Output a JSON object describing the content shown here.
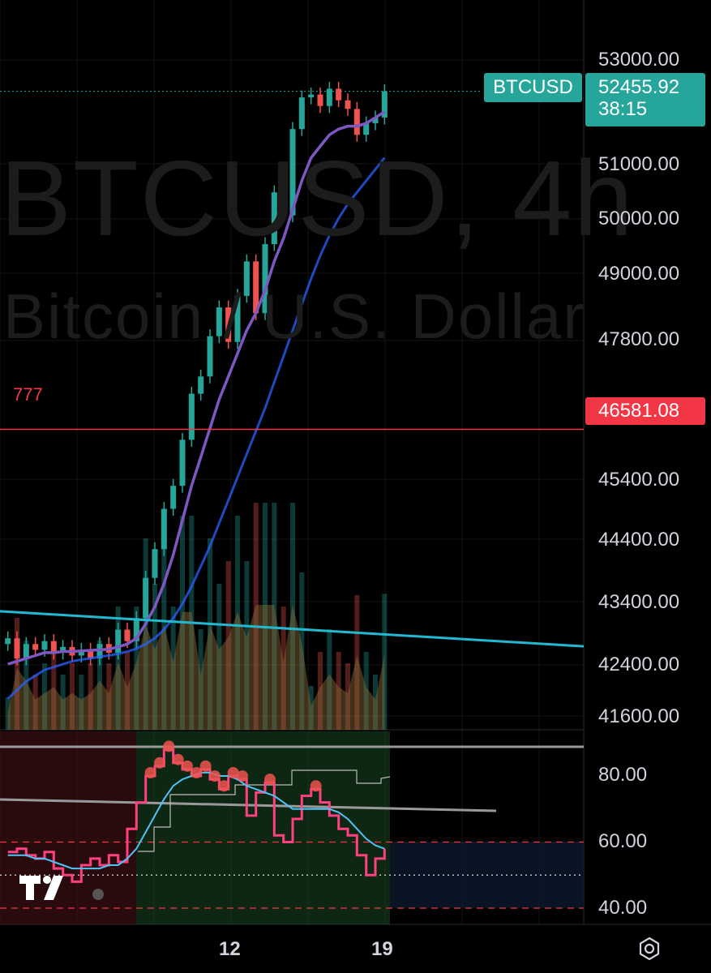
{
  "watermark": {
    "symbol": "BTCUSD, 4h",
    "description": "Bitcoin / U.S. Dollar"
  },
  "symbol_tag": "BTCUSD",
  "last_price": "52455.92",
  "countdown": "38:15",
  "alert": {
    "label": "777",
    "price": "46581.08"
  },
  "colors": {
    "up": "#26a69a",
    "down": "#ef5350",
    "ema_fast": "#7e57c2",
    "ema_slow": "#2962ff",
    "trendline": "#22b8cf",
    "alert": "#f23645",
    "rsi": "#ff4081",
    "rsi_ma": "#4fc3f7"
  },
  "icons": [
    "gear-settings-icon",
    "tradingview-logo"
  ],
  "chart_data": [
    {
      "type": "line",
      "name": "price-pane",
      "y_ticks": [
        "53000.00",
        "51000.00",
        "50000.00",
        "49000.00",
        "47800.00",
        "45400.00",
        "44400.00",
        "43400.00",
        "42400.00",
        "41600.00"
      ],
      "x_ticks": [
        "12",
        "19"
      ],
      "ylim": [
        41600,
        53000
      ],
      "close": [
        42950,
        42600,
        42850,
        42750,
        42900,
        42700,
        42800,
        42650,
        42750,
        42600,
        42850,
        42700,
        43100,
        42900,
        43300,
        44000,
        44500,
        45200,
        45600,
        46400,
        47200,
        47500,
        48200,
        48700,
        48100,
        48900,
        49500,
        48600,
        49800,
        50700,
        50300,
        51800,
        52350,
        52400,
        52200,
        52500,
        52300,
        52150,
        51700,
        51900,
        52000,
        52455.92
      ],
      "ema_fast": [
        42500,
        42550,
        42600,
        42650,
        42700,
        42700,
        42720,
        42720,
        42730,
        42740,
        42750,
        42760,
        42800,
        42850,
        42950,
        43200,
        43500,
        43900,
        44400,
        45000,
        45600,
        46100,
        46600,
        47100,
        47500,
        47900,
        48300,
        48600,
        49000,
        49500,
        49900,
        50400,
        50900,
        51300,
        51500,
        51700,
        51800,
        51850,
        51850,
        51900,
        52000,
        52100
      ],
      "ema_slow": [
        41900,
        42050,
        42200,
        42300,
        42400,
        42450,
        42500,
        42550,
        42580,
        42600,
        42630,
        42650,
        42680,
        42720,
        42770,
        42850,
        42950,
        43100,
        43300,
        43550,
        43850,
        44200,
        44550,
        44950,
        45350,
        45750,
        46150,
        46550,
        46950,
        47400,
        47850,
        48300,
        48750,
        49200,
        49600,
        49950,
        50250,
        50500,
        50700,
        50900,
        51100,
        51300
      ],
      "trendline": {
        "start": 43420,
        "end": 42810
      },
      "alert_level": 46581.08
    },
    {
      "type": "line",
      "name": "rsi-pane",
      "y_ticks": [
        "80.00",
        "60.00",
        "40.00"
      ],
      "ylim": [
        28,
        100
      ],
      "rsi": [
        57,
        58,
        56,
        55,
        57,
        52,
        50,
        48,
        53,
        55,
        53,
        56,
        54,
        64,
        72,
        80,
        83,
        88,
        84,
        82,
        80,
        82,
        79,
        76,
        80,
        79,
        68,
        75,
        78,
        62,
        60,
        67,
        74,
        76,
        72,
        68,
        64,
        62,
        56,
        50,
        55,
        58
      ],
      "rsi_ma": [
        56,
        56,
        56,
        55,
        55,
        54,
        53,
        52,
        52,
        52,
        52,
        53,
        53,
        55,
        58,
        63,
        68,
        73,
        77,
        79,
        80,
        81,
        81,
        80,
        80,
        79,
        77,
        76,
        75,
        74,
        72,
        70,
        70,
        70,
        70,
        70,
        69,
        67,
        64,
        61,
        59,
        58
      ],
      "levels": {
        "upper": 60,
        "mid": 50,
        "lower": 40
      }
    }
  ]
}
